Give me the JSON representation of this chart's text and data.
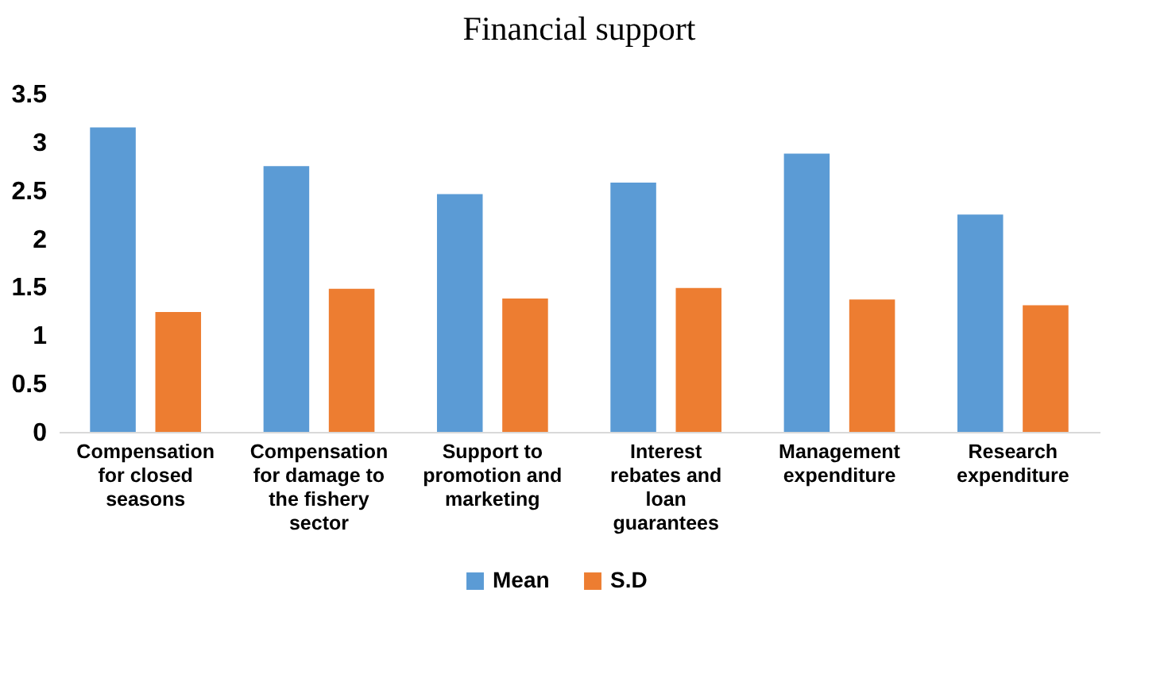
{
  "chart_data": {
    "type": "bar",
    "title": "Financial support",
    "categories": [
      "Compensation for closed seasons",
      "Compensation for damage to the fishery sector",
      "Support to promotion and marketing",
      "Interest rebates and loan guarantees",
      "Management expenditure",
      "Research expenditure"
    ],
    "series": [
      {
        "name": "Mean",
        "color": "#5b9bd5",
        "values": [
          3.15,
          2.75,
          2.46,
          2.58,
          2.88,
          2.25
        ]
      },
      {
        "name": "S.D",
        "color": "#ed7d31",
        "values": [
          1.24,
          1.48,
          1.38,
          1.49,
          1.37,
          1.31
        ]
      }
    ],
    "ylim": [
      0,
      3.5
    ],
    "yticks": [
      0,
      0.5,
      1,
      1.5,
      2,
      2.5,
      3,
      3.5
    ],
    "grid": false,
    "legend": "bottom"
  }
}
